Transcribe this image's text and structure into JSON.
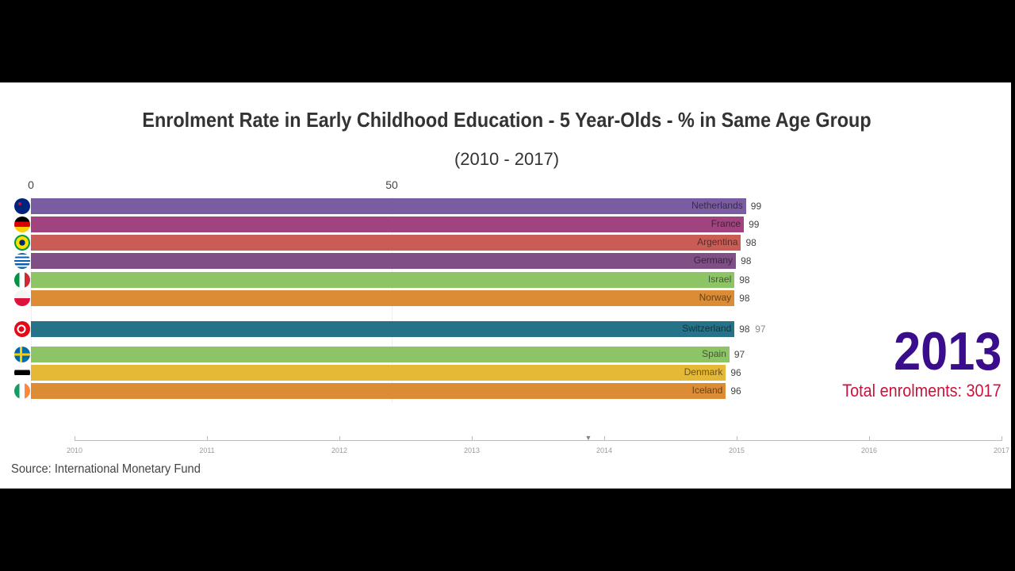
{
  "chart_data": {
    "type": "bar",
    "orientation": "horizontal",
    "title": "Enrolment Rate in Early Childhood Education - 5 Year-Olds - % in Same Age Group",
    "subtitle": "(2010 - 2017)",
    "x_ticks": [
      "0",
      "50"
    ],
    "xlim": [
      0,
      100
    ],
    "categories": [
      "Netherlands",
      "France",
      "Argentina",
      "Germany",
      "Israel",
      "Norway",
      "Switzerland",
      "Spain",
      "Denmark",
      "Iceland"
    ],
    "values": [
      99.1,
      98.8,
      98.4,
      97.7,
      97.5,
      97.5,
      97.5,
      96.8,
      96.3,
      96.3
    ],
    "value_labels": [
      "99",
      "99",
      "98",
      "98",
      "98",
      "98",
      "98",
      "97",
      "96",
      "96"
    ],
    "ghost_value_label": {
      "category": "Switzerland",
      "label": "97"
    },
    "colors": [
      "#7a5ca0",
      "#a0437e",
      "#c95d55",
      "#7f4f86",
      "#8dc466",
      "#dc8c35",
      "#267289",
      "#8dc466",
      "#e5b936",
      "#dc8c35"
    ],
    "flags": [
      "new-zealand-flag",
      "germany-flag",
      "brazil-flag",
      "greece-flag",
      "italy-flag",
      "poland-flag",
      "turkey-flag",
      "sweden-flag",
      "estonia-flag",
      "ireland-flag"
    ],
    "current_year": "2013",
    "total_label": "Total enrolments: 3017",
    "timeline": {
      "years": [
        "2010",
        "2011",
        "2012",
        "2013",
        "2014",
        "2015",
        "2016",
        "2017"
      ],
      "position": 2013.88
    },
    "year_color": "#3a0d8c",
    "total_color": "#d0103a"
  },
  "source": "Source: International Monetary Fund"
}
